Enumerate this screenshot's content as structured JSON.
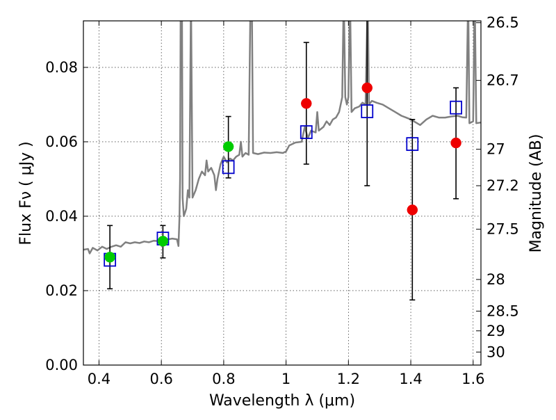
{
  "chart_data": {
    "type": "scatter",
    "xlabel": "Wavelength  λ (μm)",
    "ylabel": "Flux  Fν  ( μJy )",
    "y2label": "Magnitude (AB)",
    "xlim": [
      0.35,
      1.625
    ],
    "ylim": [
      0.0,
      0.0925
    ],
    "grid": true,
    "x_ticks": [
      0.4,
      0.6,
      0.8,
      1.0,
      1.2,
      1.4,
      1.6
    ],
    "x_tick_labels": [
      "0.4",
      "0.6",
      "0.8",
      "1",
      "1.2",
      "1.4",
      "1.6"
    ],
    "y_ticks": [
      0.0,
      0.02,
      0.04,
      0.06,
      0.08
    ],
    "y_tick_labels": [
      "0.00",
      "0.02",
      "0.04",
      "0.06",
      "0.08"
    ],
    "mag_ticks": [
      {
        "label": "26.5",
        "flux": 0.092
      },
      {
        "label": "26.7",
        "flux": 0.0765
      },
      {
        "label": "27",
        "flux": 0.058
      },
      {
        "label": "27.2",
        "flux": 0.0482
      },
      {
        "label": "27.5",
        "flux": 0.0365
      },
      {
        "label": "28",
        "flux": 0.023
      },
      {
        "label": "28.5",
        "flux": 0.0145
      },
      {
        "label": "29",
        "flux": 0.0092
      },
      {
        "label": "30",
        "flux": 0.0035
      }
    ],
    "series": [
      {
        "marker": "circle",
        "color": "#00cc00",
        "points": [
          {
            "x": 0.435,
            "y": 0.029,
            "yerr": [
              0.0205,
              0.0375
            ]
          },
          {
            "x": 0.605,
            "y": 0.0333,
            "yerr": [
              0.0288,
              0.0375
            ]
          },
          {
            "x": 0.815,
            "y": 0.0587,
            "yerr": [
              0.0503,
              0.0668
            ]
          }
        ]
      },
      {
        "marker": "circle",
        "color": "#ee0000",
        "points": [
          {
            "x": 1.065,
            "y": 0.0703,
            "yerr": [
              0.054,
              0.0867
            ]
          },
          {
            "x": 1.26,
            "y": 0.0745,
            "yerr": [
              0.0482,
              0.1
            ]
          },
          {
            "x": 1.405,
            "y": 0.0417,
            "yerr": [
              0.0175,
              0.066
            ]
          },
          {
            "x": 1.545,
            "y": 0.0597,
            "yerr": [
              0.0447,
              0.0745
            ]
          }
        ]
      },
      {
        "marker": "square",
        "color": "#0000cc",
        "points": [
          {
            "x": 0.435,
            "y": 0.0283
          },
          {
            "x": 0.605,
            "y": 0.034
          },
          {
            "x": 0.815,
            "y": 0.0532
          },
          {
            "x": 1.065,
            "y": 0.0626
          },
          {
            "x": 1.26,
            "y": 0.0682
          },
          {
            "x": 1.405,
            "y": 0.0594
          },
          {
            "x": 1.545,
            "y": 0.0692
          }
        ]
      },
      {
        "marker": "line",
        "color": "#808080",
        "points": [
          [
            0.35,
            0.031
          ],
          [
            0.365,
            0.0312
          ],
          [
            0.37,
            0.03
          ],
          [
            0.38,
            0.0315
          ],
          [
            0.395,
            0.0308
          ],
          [
            0.41,
            0.0318
          ],
          [
            0.425,
            0.0312
          ],
          [
            0.44,
            0.0318
          ],
          [
            0.455,
            0.0322
          ],
          [
            0.47,
            0.0318
          ],
          [
            0.485,
            0.033
          ],
          [
            0.5,
            0.0327
          ],
          [
            0.515,
            0.033
          ],
          [
            0.53,
            0.0328
          ],
          [
            0.545,
            0.0332
          ],
          [
            0.56,
            0.033
          ],
          [
            0.575,
            0.0334
          ],
          [
            0.595,
            0.0333
          ],
          [
            0.615,
            0.0337
          ],
          [
            0.635,
            0.034
          ],
          [
            0.65,
            0.0338
          ],
          [
            0.655,
            0.032
          ],
          [
            0.658,
            0.0395
          ],
          [
            0.66,
            0.05
          ],
          [
            0.662,
            0.1
          ],
          [
            0.666,
            0.1
          ],
          [
            0.668,
            0.045
          ],
          [
            0.672,
            0.04
          ],
          [
            0.68,
            0.042
          ],
          [
            0.685,
            0.047
          ],
          [
            0.69,
            0.045
          ],
          [
            0.695,
            0.1
          ],
          [
            0.7,
            0.045
          ],
          [
            0.71,
            0.047
          ],
          [
            0.72,
            0.05
          ],
          [
            0.73,
            0.052
          ],
          [
            0.74,
            0.051
          ],
          [
            0.745,
            0.055
          ],
          [
            0.75,
            0.052
          ],
          [
            0.76,
            0.053
          ],
          [
            0.77,
            0.051
          ],
          [
            0.775,
            0.047
          ],
          [
            0.78,
            0.05
          ],
          [
            0.79,
            0.054
          ],
          [
            0.8,
            0.056
          ],
          [
            0.81,
            0.0545
          ],
          [
            0.82,
            0.0555
          ],
          [
            0.83,
            0.055
          ],
          [
            0.84,
            0.056
          ],
          [
            0.85,
            0.0565
          ],
          [
            0.855,
            0.06
          ],
          [
            0.86,
            0.056
          ],
          [
            0.87,
            0.057
          ],
          [
            0.88,
            0.0565
          ],
          [
            0.886,
            0.1
          ],
          [
            0.89,
            0.1
          ],
          [
            0.894,
            0.057
          ],
          [
            0.91,
            0.0567
          ],
          [
            0.93,
            0.0571
          ],
          [
            0.95,
            0.057
          ],
          [
            0.97,
            0.0572
          ],
          [
            0.99,
            0.057
          ],
          [
            1.0,
            0.0574
          ],
          [
            1.01,
            0.059
          ],
          [
            1.03,
            0.0598
          ],
          [
            1.05,
            0.06
          ],
          [
            1.06,
            0.064
          ],
          [
            1.07,
            0.061
          ],
          [
            1.08,
            0.063
          ],
          [
            1.095,
            0.0625
          ],
          [
            1.1,
            0.068
          ],
          [
            1.105,
            0.063
          ],
          [
            1.12,
            0.064
          ],
          [
            1.13,
            0.0655
          ],
          [
            1.14,
            0.0645
          ],
          [
            1.15,
            0.066
          ],
          [
            1.16,
            0.0665
          ],
          [
            1.17,
            0.068
          ],
          [
            1.18,
            0.072
          ],
          [
            1.185,
            0.1
          ],
          [
            1.19,
            0.072
          ],
          [
            1.195,
            0.07
          ],
          [
            1.2,
            0.072
          ],
          [
            1.205,
            0.1
          ],
          [
            1.21,
            0.068
          ],
          [
            1.22,
            0.069
          ],
          [
            1.235,
            0.0695
          ],
          [
            1.245,
            0.0705
          ],
          [
            1.255,
            0.07
          ],
          [
            1.262,
            0.1
          ],
          [
            1.266,
            0.07
          ],
          [
            1.275,
            0.071
          ],
          [
            1.29,
            0.0705
          ],
          [
            1.31,
            0.07
          ],
          [
            1.33,
            0.069
          ],
          [
            1.35,
            0.068
          ],
          [
            1.37,
            0.067
          ],
          [
            1.385,
            0.0665
          ],
          [
            1.4,
            0.066
          ],
          [
            1.43,
            0.0645
          ],
          [
            1.45,
            0.066
          ],
          [
            1.47,
            0.067
          ],
          [
            1.49,
            0.0665
          ],
          [
            1.51,
            0.0665
          ],
          [
            1.53,
            0.0668
          ],
          [
            1.55,
            0.067
          ],
          [
            1.565,
            0.0666
          ],
          [
            1.578,
            0.0665
          ],
          [
            1.584,
            0.1
          ],
          [
            1.588,
            0.065
          ],
          [
            1.6,
            0.0655
          ],
          [
            1.605,
            0.1
          ],
          [
            1.61,
            0.065
          ],
          [
            1.625,
            0.0652
          ]
        ]
      }
    ]
  }
}
